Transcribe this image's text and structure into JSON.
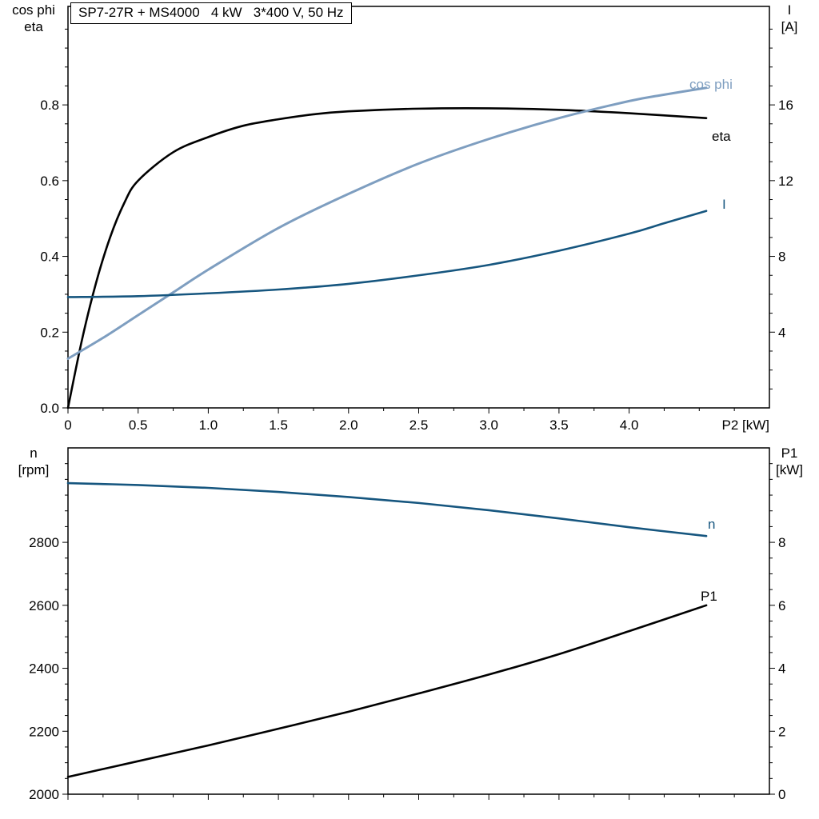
{
  "colors": {
    "curve_black": "#000000",
    "curve_steel_blue": "#7e9ec0",
    "curve_navy_blue": "#16567f",
    "frame": "#000000",
    "background": "#ffffff"
  },
  "chart_data": [
    {
      "id": "motor-electrical-curves",
      "type": "line",
      "title": "SP7-27R + MS4000   4 kW   3*400 V, 50 Hz",
      "x_axis": {
        "label": "P2 [kW]",
        "min": 0,
        "max": 5.0,
        "ticks": [
          0,
          0.5,
          1.0,
          1.5,
          2.0,
          2.5,
          3.0,
          3.5,
          4.0
        ],
        "tick_labels": [
          "0",
          "0.5",
          "1.0",
          "1.5",
          "2.0",
          "2.5",
          "3.0",
          "3.5",
          "4.0"
        ],
        "minor_step": 0.25
      },
      "y_left": {
        "label_lines": [
          "cos phi",
          "eta"
        ],
        "min": 0,
        "max": 1.06,
        "ticks": [
          0.0,
          0.2,
          0.4,
          0.6,
          0.8
        ],
        "tick_labels": [
          "0.0",
          "0.2",
          "0.4",
          "0.6",
          "0.8"
        ],
        "minor_step": 0.05
      },
      "y_right": {
        "label_lines": [
          "I",
          "[A]"
        ],
        "min": 0,
        "max": 21.2,
        "ticks": [
          4,
          8,
          12,
          16
        ],
        "tick_labels": [
          "4",
          "8",
          "12",
          "16"
        ],
        "minor_step": 1
      },
      "series": [
        {
          "name": "eta",
          "axis": "left",
          "color": "#000000",
          "stroke_width": 2.6,
          "x": [
            0,
            0.1,
            0.2,
            0.3,
            0.4,
            0.5,
            0.75,
            1.0,
            1.25,
            1.5,
            1.75,
            2.0,
            2.5,
            3.0,
            3.5,
            4.0,
            4.55
          ],
          "y": [
            0,
            0.18,
            0.33,
            0.45,
            0.54,
            0.6,
            0.675,
            0.715,
            0.745,
            0.762,
            0.775,
            0.783,
            0.79,
            0.791,
            0.787,
            0.778,
            0.765
          ]
        },
        {
          "name": "cos phi",
          "axis": "left",
          "color": "#7e9ec0",
          "stroke_width": 3,
          "x": [
            0,
            0.25,
            0.5,
            0.75,
            1.0,
            1.5,
            2.0,
            2.5,
            3.0,
            3.5,
            4.0,
            4.25,
            4.55
          ],
          "y": [
            0.13,
            0.185,
            0.245,
            0.305,
            0.365,
            0.475,
            0.565,
            0.645,
            0.71,
            0.765,
            0.81,
            0.827,
            0.845
          ]
        },
        {
          "name": "I",
          "axis": "right",
          "color": "#16567f",
          "stroke_width": 2.6,
          "x": [
            0,
            0.5,
            1.0,
            1.5,
            2.0,
            2.5,
            3.0,
            3.5,
            4.0,
            4.25,
            4.55
          ],
          "y": [
            5.85,
            5.9,
            6.05,
            6.25,
            6.55,
            7.0,
            7.55,
            8.3,
            9.2,
            9.75,
            10.4
          ]
        }
      ]
    },
    {
      "id": "motor-speed-power-curves",
      "type": "line",
      "title": "",
      "x_axis": {
        "label": "",
        "min": 0,
        "max": 5.0,
        "ticks": [
          0,
          0.5,
          1.0,
          1.5,
          2.0,
          2.5,
          3.0,
          3.5,
          4.0
        ],
        "tick_labels": [
          "",
          "",
          "",
          "",
          "",
          "",
          "",
          "",
          ""
        ],
        "minor_step": 0.25
      },
      "y_left": {
        "label_lines": [
          "n",
          "[rpm]"
        ],
        "min": 2000,
        "max": 3100,
        "ticks": [
          2000,
          2200,
          2400,
          2600,
          2800
        ],
        "tick_labels": [
          "2000",
          "2200",
          "2400",
          "2600",
          "2800"
        ],
        "minor_step": 50
      },
      "y_right": {
        "label_lines": [
          "P1",
          "[kW]"
        ],
        "min": 0,
        "max": 11,
        "ticks": [
          0,
          2,
          4,
          6,
          8
        ],
        "tick_labels": [
          "0",
          "2",
          "4",
          "6",
          "8"
        ],
        "minor_step": 0.5
      },
      "series": [
        {
          "name": "n",
          "axis": "left",
          "color": "#16567f",
          "stroke_width": 2.6,
          "x": [
            0,
            0.5,
            1.0,
            1.5,
            2.0,
            2.5,
            3.0,
            3.5,
            4.0,
            4.55
          ],
          "y": [
            2988,
            2982,
            2973,
            2960,
            2944,
            2925,
            2902,
            2876,
            2848,
            2820
          ]
        },
        {
          "name": "P1",
          "axis": "right",
          "color": "#000000",
          "stroke_width": 2.6,
          "x": [
            0,
            0.5,
            1.0,
            1.5,
            2.0,
            2.5,
            3.0,
            3.5,
            4.0,
            4.55
          ],
          "y": [
            0.55,
            1.05,
            1.55,
            2.08,
            2.62,
            3.2,
            3.8,
            4.45,
            5.18,
            6.0
          ]
        }
      ]
    }
  ]
}
